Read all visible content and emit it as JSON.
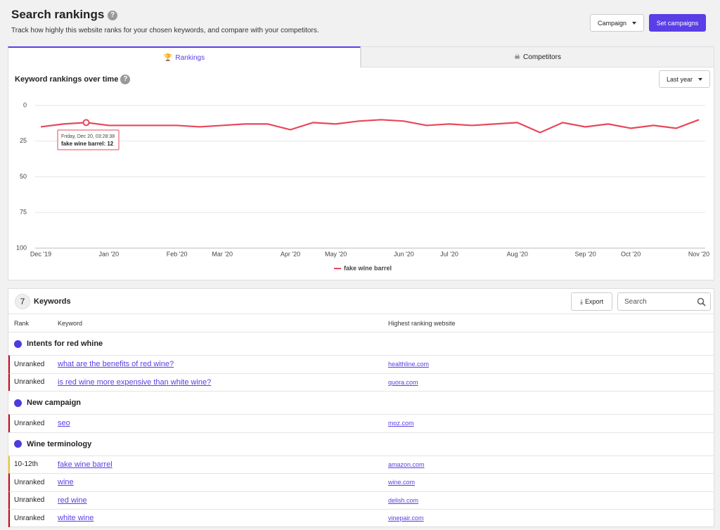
{
  "header": {
    "title": "Search rankings",
    "subtitle": "Track how highly this website ranks for your chosen keywords, and compare with your competitors.",
    "campaign_button": "Campaign",
    "set_campaigns_button": "Set campaigns"
  },
  "tabs": [
    "Rankings",
    "Competitors"
  ],
  "chart_panel": {
    "title": "Keyword rankings over time",
    "range_select": "Last year"
  },
  "chart_data": {
    "type": "line",
    "categories": [
      "Dec '19",
      null,
      null,
      "Jan '20",
      null,
      null,
      "Feb '20",
      null,
      "Mar '20",
      null,
      null,
      "Apr '20",
      null,
      "May '20",
      null,
      null,
      "Jun '20",
      null,
      "Jul '20",
      null,
      null,
      "Aug '20",
      null,
      null,
      "Sep '20",
      null,
      "Oct '20",
      null,
      null,
      "Nov '20"
    ],
    "series": [
      {
        "name": "fake wine barrel",
        "color": "#e8475a",
        "values": [
          15,
          13,
          12,
          14,
          14,
          14,
          14,
          15,
          14,
          13,
          13,
          17,
          12,
          13,
          11,
          10,
          11,
          14,
          13,
          14,
          13,
          12,
          19,
          12,
          15,
          13,
          16,
          14,
          16,
          10
        ]
      }
    ],
    "ylim": [
      0,
      100
    ],
    "y_inverted": true,
    "yticks": [
      0,
      25,
      50,
      75,
      100
    ],
    "grid": true,
    "legend": "bottom"
  },
  "tooltip": {
    "date": "Friday, Dec 20, 03:28:38",
    "text": "fake wine barrel: 12"
  },
  "keywords": {
    "count": 7,
    "title": "Keywords",
    "export": "Export",
    "search_placeholder": "Search",
    "columns": [
      "Rank",
      "Keyword",
      "Highest ranking website"
    ],
    "groups": [
      {
        "name": "Intents for red whine",
        "rows": [
          {
            "rank": "Unranked",
            "keyword": "what are the benefits of red wine?",
            "website": "healthline.com",
            "color": "#d0021b"
          },
          {
            "rank": "Unranked",
            "keyword": "is red wine more expensive than white wine?",
            "website": "quora.com",
            "color": "#d0021b"
          }
        ]
      },
      {
        "name": "New campaign",
        "rows": [
          {
            "rank": "Unranked",
            "keyword": "seo",
            "website": "moz.com",
            "color": "#d0021b"
          }
        ]
      },
      {
        "name": "Wine terminology",
        "rows": [
          {
            "rank": "10-12th",
            "keyword": "fake wine barrel",
            "website": "amazon.com",
            "color": "#f5c518"
          },
          {
            "rank": "Unranked",
            "keyword": "wine",
            "website": "wine.com",
            "color": "#d0021b"
          },
          {
            "rank": "Unranked",
            "keyword": "red wine",
            "website": "delish.com",
            "color": "#d0021b"
          },
          {
            "rank": "Unranked",
            "keyword": "white wine",
            "website": "vinepair.com",
            "color": "#d0021b"
          }
        ]
      }
    ]
  }
}
